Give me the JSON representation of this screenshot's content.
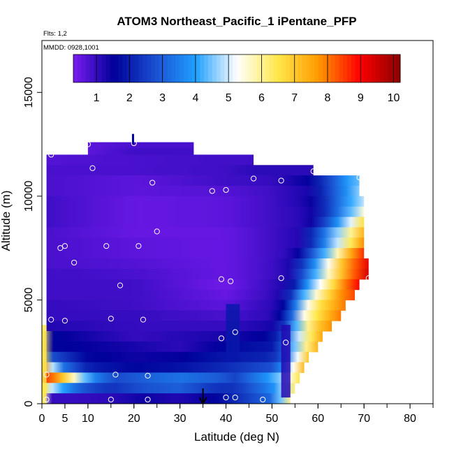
{
  "chart_data": {
    "type": "heatmap",
    "title": "ATOM3 Northeast_Pacific_1 iPentane_PFP",
    "subtitle_flights": "Flts: 1,2",
    "subtitle_dates": "MMDD: 0928,1001",
    "xlabel": "Latitude (deg N)",
    "ylabel": "Altitude (m)",
    "xlim": [
      0,
      85
    ],
    "ylim": [
      0,
      17500
    ],
    "x_ticks": [
      0,
      5,
      10,
      20,
      30,
      40,
      50,
      60,
      70,
      80
    ],
    "y_ticks": [
      0,
      5000,
      10000,
      15000
    ],
    "colorbar": {
      "range": [
        0.3,
        10.2
      ],
      "ticks": [
        1,
        2,
        3,
        4,
        5,
        6,
        7,
        8,
        9,
        10
      ],
      "colors": [
        "#7a1cf0",
        "#00009a",
        "#1a4fd0",
        "#1fa0ff",
        "#ffffff",
        "#ffe84a",
        "#ff9a00",
        "#ff0000",
        "#8a0000"
      ]
    },
    "field": [
      {
        "alt_min": 12300,
        "alt_max": 12600,
        "lat_min": 10,
        "lat_max": 33,
        "values": [
          [
            10,
            0.6
          ],
          [
            20,
            0.8
          ],
          [
            33,
            0.8
          ]
        ]
      },
      {
        "alt_min": 12000,
        "alt_max": 12300,
        "lat_min": 10,
        "lat_max": 33,
        "values": [
          [
            10,
            0.6
          ],
          [
            20,
            0.9
          ],
          [
            33,
            0.9
          ]
        ]
      },
      {
        "alt_min": 11500,
        "alt_max": 12000,
        "lat_min": 1,
        "lat_max": 46,
        "values": [
          [
            1,
            0.7
          ],
          [
            20,
            0.8
          ],
          [
            46,
            0.9
          ]
        ]
      },
      {
        "alt_min": 11000,
        "alt_max": 11500,
        "lat_min": 1,
        "lat_max": 59,
        "values": [
          [
            1,
            0.8
          ],
          [
            20,
            0.8
          ],
          [
            40,
            0.9
          ],
          [
            46,
            1.1
          ],
          [
            59,
            1.1
          ]
        ]
      },
      {
        "alt_min": 10500,
        "alt_max": 11000,
        "lat_min": 1,
        "lat_max": 69,
        "values": [
          [
            1,
            0.8
          ],
          [
            20,
            0.6
          ],
          [
            40,
            0.9
          ],
          [
            50,
            1.0
          ],
          [
            58,
            1.5
          ],
          [
            62,
            2.5
          ],
          [
            66,
            3.8
          ],
          [
            69,
            4.4
          ]
        ]
      },
      {
        "alt_min": 10000,
        "alt_max": 10500,
        "lat_min": 1,
        "lat_max": 69,
        "values": [
          [
            1,
            0.8
          ],
          [
            20,
            0.6
          ],
          [
            40,
            0.7
          ],
          [
            50,
            0.9
          ],
          [
            58,
            1.3
          ],
          [
            62,
            2.5
          ],
          [
            66,
            3.7
          ],
          [
            69,
            4.6
          ]
        ]
      },
      {
        "alt_min": 9500,
        "alt_max": 10000,
        "lat_min": 1,
        "lat_max": 70,
        "values": [
          [
            1,
            0.9
          ],
          [
            20,
            0.5
          ],
          [
            40,
            0.6
          ],
          [
            50,
            0.9
          ],
          [
            58,
            1.3
          ],
          [
            62,
            2.4
          ],
          [
            66,
            3.8
          ],
          [
            70,
            4.9
          ]
        ]
      },
      {
        "alt_min": 9000,
        "alt_max": 9500,
        "lat_min": 1,
        "lat_max": 70,
        "values": [
          [
            1,
            0.9
          ],
          [
            20,
            0.5
          ],
          [
            40,
            0.6
          ],
          [
            50,
            0.9
          ],
          [
            58,
            1.2
          ],
          [
            62,
            2.4
          ],
          [
            66,
            3.9
          ],
          [
            70,
            5.5
          ]
        ]
      },
      {
        "alt_min": 8500,
        "alt_max": 9000,
        "lat_min": 1,
        "lat_max": 70,
        "values": [
          [
            1,
            0.9
          ],
          [
            20,
            0.5
          ],
          [
            40,
            0.6
          ],
          [
            50,
            0.9
          ],
          [
            58,
            1.2
          ],
          [
            62,
            2.8
          ],
          [
            66,
            4.5
          ],
          [
            70,
            6.6
          ]
        ]
      },
      {
        "alt_min": 8000,
        "alt_max": 8500,
        "lat_min": 1,
        "lat_max": 70,
        "values": [
          [
            1,
            0.8
          ],
          [
            20,
            0.5
          ],
          [
            40,
            0.5
          ],
          [
            50,
            0.9
          ],
          [
            56,
            1.2
          ],
          [
            60,
            2.7
          ],
          [
            64,
            4.5
          ],
          [
            70,
            7.3
          ]
        ]
      },
      {
        "alt_min": 7500,
        "alt_max": 8000,
        "lat_min": 1,
        "lat_max": 70,
        "values": [
          [
            1,
            0.8
          ],
          [
            20,
            0.6
          ],
          [
            40,
            0.5
          ],
          [
            50,
            0.9
          ],
          [
            56,
            1.2
          ],
          [
            60,
            2.8
          ],
          [
            64,
            4.8
          ],
          [
            70,
            7.8
          ]
        ]
      },
      {
        "alt_min": 7000,
        "alt_max": 7500,
        "lat_min": 1,
        "lat_max": 70,
        "values": [
          [
            1,
            0.8
          ],
          [
            20,
            0.6
          ],
          [
            40,
            0.5
          ],
          [
            50,
            0.9
          ],
          [
            55,
            1.2
          ],
          [
            59,
            3.0
          ],
          [
            63,
            5.0
          ],
          [
            67,
            7.4
          ],
          [
            70,
            8.6
          ]
        ]
      },
      {
        "alt_min": 6500,
        "alt_max": 7000,
        "lat_min": 1,
        "lat_max": 71,
        "values": [
          [
            1,
            0.8
          ],
          [
            20,
            0.7
          ],
          [
            40,
            0.5
          ],
          [
            50,
            0.9
          ],
          [
            54,
            1.3
          ],
          [
            58,
            3.0
          ],
          [
            62,
            5.2
          ],
          [
            66,
            7.5
          ],
          [
            71,
            9.2
          ]
        ]
      },
      {
        "alt_min": 6000,
        "alt_max": 6500,
        "lat_min": 1,
        "lat_max": 71,
        "values": [
          [
            1,
            0.9
          ],
          [
            20,
            0.8
          ],
          [
            40,
            0.5
          ],
          [
            50,
            0.9
          ],
          [
            54,
            1.3
          ],
          [
            58,
            3.5
          ],
          [
            62,
            5.5
          ],
          [
            66,
            7.5
          ],
          [
            71,
            9.4
          ]
        ]
      },
      {
        "alt_min": 5500,
        "alt_max": 6000,
        "lat_min": 1,
        "lat_max": 69,
        "values": [
          [
            1,
            0.9
          ],
          [
            20,
            0.9
          ],
          [
            40,
            0.4
          ],
          [
            50,
            1.0
          ],
          [
            54,
            1.4
          ],
          [
            58,
            4.0
          ],
          [
            62,
            6.0
          ],
          [
            66,
            8.0
          ],
          [
            69,
            9.0
          ]
        ]
      },
      {
        "alt_min": 5000,
        "alt_max": 5500,
        "lat_min": 1,
        "lat_max": 68,
        "values": [
          [
            1,
            0.9
          ],
          [
            20,
            0.9
          ],
          [
            40,
            0.5
          ],
          [
            50,
            1.0
          ],
          [
            53,
            1.5
          ],
          [
            57,
            4.3
          ],
          [
            61,
            6.2
          ],
          [
            65,
            7.8
          ],
          [
            68,
            8.4
          ]
        ]
      },
      {
        "alt_min": 4500,
        "alt_max": 5000,
        "lat_min": 1,
        "lat_max": 66,
        "values": [
          [
            1,
            1.0
          ],
          [
            20,
            0.9
          ],
          [
            40,
            0.6
          ],
          [
            50,
            1.1
          ],
          [
            53,
            1.7
          ],
          [
            57,
            5.0
          ],
          [
            61,
            6.8
          ],
          [
            66,
            8.0
          ]
        ]
      },
      {
        "alt_min": 4000,
        "alt_max": 4500,
        "lat_min": 1,
        "lat_max": 65,
        "values": [
          [
            1,
            1.0
          ],
          [
            20,
            1.0
          ],
          [
            40,
            0.8
          ],
          [
            50,
            1.1
          ],
          [
            53,
            2.0
          ],
          [
            57,
            5.4
          ],
          [
            61,
            7.0
          ],
          [
            65,
            8.0
          ]
        ]
      },
      {
        "alt_min": 3500,
        "alt_max": 4000,
        "lat_min": 1,
        "lat_max": 63,
        "values": [
          [
            1,
            1.2
          ],
          [
            20,
            1.0
          ],
          [
            40,
            1.0
          ],
          [
            50,
            1.3
          ],
          [
            53,
            2.5
          ],
          [
            57,
            5.6
          ],
          [
            60,
            7.0
          ],
          [
            63,
            7.8
          ]
        ]
      },
      {
        "alt_min": 3000,
        "alt_max": 3500,
        "lat_min": 0,
        "lat_max": 61,
        "values": [
          [
            0,
            6.2
          ],
          [
            2,
            1.6
          ],
          [
            20,
            1.0
          ],
          [
            40,
            1.3
          ],
          [
            50,
            1.6
          ],
          [
            53,
            3.0
          ],
          [
            57,
            5.7
          ],
          [
            61,
            7.5
          ]
        ]
      },
      {
        "alt_min": 2500,
        "alt_max": 3000,
        "lat_min": 0,
        "lat_max": 60,
        "values": [
          [
            0,
            6.3
          ],
          [
            2,
            1.6
          ],
          [
            15,
            1.4
          ],
          [
            30,
            1.1
          ],
          [
            40,
            1.6
          ],
          [
            50,
            1.9
          ],
          [
            53,
            3.2
          ],
          [
            57,
            5.8
          ],
          [
            60,
            7.3
          ]
        ]
      },
      {
        "alt_min": 2000,
        "alt_max": 2500,
        "lat_min": 0,
        "lat_max": 58,
        "values": [
          [
            0,
            6.6
          ],
          [
            2,
            2.8
          ],
          [
            10,
            1.6
          ],
          [
            20,
            1.4
          ],
          [
            30,
            1.5
          ],
          [
            40,
            1.9
          ],
          [
            50,
            2.1
          ],
          [
            53,
            3.2
          ],
          [
            56,
            5.5
          ],
          [
            58,
            7.0
          ]
        ]
      },
      {
        "alt_min": 1500,
        "alt_max": 2000,
        "lat_min": 0,
        "lat_max": 57,
        "values": [
          [
            0,
            7.8
          ],
          [
            1,
            6.0
          ],
          [
            4,
            3.5
          ],
          [
            10,
            2.0
          ],
          [
            20,
            1.6
          ],
          [
            30,
            1.8
          ],
          [
            40,
            2.2
          ],
          [
            50,
            2.8
          ],
          [
            53,
            4.0
          ],
          [
            57,
            7.2
          ]
        ]
      },
      {
        "alt_min": 1000,
        "alt_max": 1500,
        "lat_min": 0,
        "lat_max": 56,
        "values": [
          [
            0,
            8.7
          ],
          [
            2,
            8.2
          ],
          [
            5,
            6.8
          ],
          [
            9,
            4.5
          ],
          [
            12,
            3.4
          ],
          [
            16,
            2.7
          ],
          [
            22,
            3.0
          ],
          [
            30,
            3.3
          ],
          [
            38,
            3.0
          ],
          [
            42,
            2.6
          ],
          [
            50,
            4.0
          ],
          [
            53,
            5.0
          ],
          [
            56,
            6.5
          ]
        ]
      },
      {
        "alt_min": 500,
        "alt_max": 1000,
        "lat_min": 0,
        "lat_max": 55,
        "values": [
          [
            0,
            6.5
          ],
          [
            2,
            5.0
          ],
          [
            6,
            3.5
          ],
          [
            10,
            2.7
          ],
          [
            15,
            2.3
          ],
          [
            22,
            2.8
          ],
          [
            30,
            3.0
          ],
          [
            38,
            2.3
          ],
          [
            42,
            2.3
          ],
          [
            50,
            3.6
          ],
          [
            53,
            5.0
          ],
          [
            55,
            6.2
          ]
        ]
      },
      {
        "alt_min": 0,
        "alt_max": 500,
        "lat_min": 0,
        "lat_max": 54,
        "values": [
          [
            0,
            5.5
          ],
          [
            2,
            1.0
          ],
          [
            8,
            1.0
          ],
          [
            15,
            1.1
          ],
          [
            22,
            1.4
          ],
          [
            30,
            1.2
          ],
          [
            38,
            1.6
          ],
          [
            42,
            2.2
          ],
          [
            50,
            3.2
          ],
          [
            54,
            6.0
          ]
        ]
      }
    ],
    "overlays": [
      {
        "alt_min": 2000,
        "alt_max": 4800,
        "lat_min": 40,
        "lat_max": 43,
        "value": 1.9
      },
      {
        "alt_min": 300,
        "alt_max": 3800,
        "lat_min": 52,
        "lat_max": 54,
        "value": 1.2
      },
      {
        "alt_min": 0,
        "alt_max": 3800,
        "lat_min": 0,
        "lat_max": 1,
        "value": 6.5
      }
    ],
    "samples": [
      [
        10,
        12500
      ],
      [
        20,
        12550
      ],
      [
        2,
        12000
      ],
      [
        11,
        11350
      ],
      [
        24,
        10650
      ],
      [
        46,
        10850
      ],
      [
        52,
        10750
      ],
      [
        59,
        11200
      ],
      [
        69,
        10900
      ],
      [
        37,
        10250
      ],
      [
        40,
        10300
      ],
      [
        25,
        8300
      ],
      [
        4,
        7500
      ],
      [
        5,
        7600
      ],
      [
        14,
        7600
      ],
      [
        21,
        7600
      ],
      [
        7,
        6800
      ],
      [
        39,
        6000
      ],
      [
        41,
        5900
      ],
      [
        52,
        6050
      ],
      [
        71,
        6050
      ],
      [
        17,
        5700
      ],
      [
        2,
        4050
      ],
      [
        5,
        4000
      ],
      [
        15,
        4100
      ],
      [
        22,
        4050
      ],
      [
        42,
        3450
      ],
      [
        39,
        3150
      ],
      [
        53,
        2950
      ],
      [
        16,
        1400
      ],
      [
        23,
        1350
      ],
      [
        1,
        1400
      ],
      [
        40,
        300
      ],
      [
        42,
        300
      ],
      [
        48,
        200
      ],
      [
        1,
        200
      ],
      [
        15,
        200
      ],
      [
        23,
        200
      ]
    ],
    "marker": {
      "lat": 35,
      "label": "arrow"
    },
    "grid": false
  }
}
